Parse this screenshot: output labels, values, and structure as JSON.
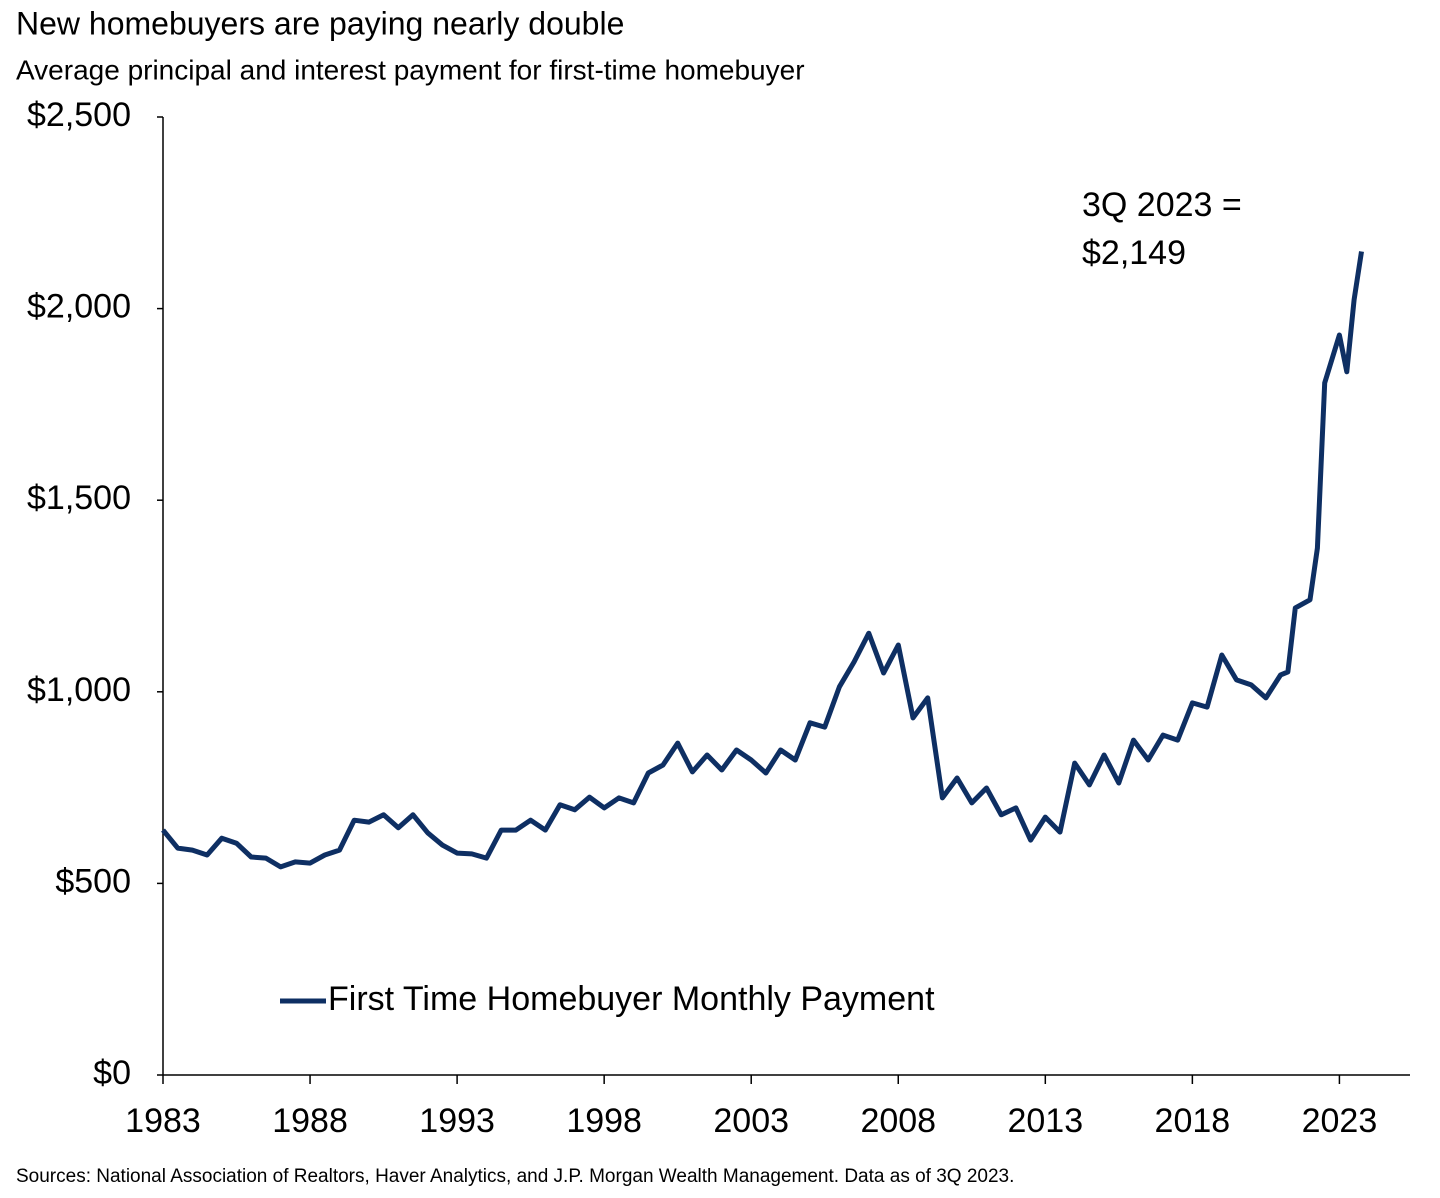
{
  "chart_data": {
    "type": "line",
    "title": "New homebuyers are paying nearly double",
    "subtitle": "Average principal and interest payment for first-time homebuyer",
    "annotation": [
      "3Q 2023 =",
      "$2,149"
    ],
    "source": "Sources: National Association of Realtors, Haver Analytics, and J.P. Morgan Wealth Management. Data as of 3Q 2023.",
    "x": [
      1983.0,
      1983.5,
      1984.0,
      1984.5,
      1985.0,
      1985.5,
      1986.0,
      1986.5,
      1987.0,
      1987.5,
      1988.0,
      1988.5,
      1989.0,
      1989.5,
      1990.0,
      1990.5,
      1991.0,
      1991.5,
      1992.0,
      1992.5,
      1993.0,
      1993.5,
      1994.0,
      1994.5,
      1995.0,
      1995.5,
      1996.0,
      1996.5,
      1997.0,
      1997.5,
      1998.0,
      1998.5,
      1999.0,
      1999.5,
      2000.0,
      2000.5,
      2001.0,
      2001.5,
      2002.0,
      2002.5,
      2003.0,
      2003.5,
      2004.0,
      2004.5,
      2005.0,
      2005.5,
      2006.0,
      2006.5,
      2007.0,
      2007.5,
      2008.0,
      2008.5,
      2009.0,
      2009.5,
      2010.0,
      2010.5,
      2011.0,
      2011.5,
      2012.0,
      2012.5,
      2013.0,
      2013.5,
      2014.0,
      2014.5,
      2015.0,
      2015.5,
      2016.0,
      2016.5,
      2017.0,
      2017.5,
      2018.0,
      2018.5,
      2019.0,
      2019.5,
      2020.0,
      2020.5,
      2021.0,
      2021.25,
      2021.5,
      2022.0,
      2022.25,
      2022.5,
      2023.0,
      2023.25,
      2023.5,
      2023.75
    ],
    "series": [
      {
        "name": "First Time Homebuyer Monthly Payment",
        "color": "#0e2f63",
        "values": [
          639,
          592,
          587,
          574,
          618,
          605,
          569,
          566,
          543,
          556,
          553,
          574,
          587,
          665,
          660,
          679,
          645,
          679,
          632,
          600,
          579,
          577,
          566,
          639,
          639,
          665,
          639,
          705,
          692,
          725,
          697,
          723,
          710,
          788,
          809,
          866,
          791,
          835,
          796,
          848,
          822,
          788,
          848,
          822,
          919,
          908,
          1013,
          1078,
          1153,
          1049,
          1122,
          932,
          984,
          723,
          775,
          710,
          749,
          679,
          697,
          613,
          673,
          634,
          814,
          757,
          835,
          762,
          874,
          822,
          887,
          874,
          971,
          960,
          1096,
          1031,
          1018,
          984,
          1044,
          1052,
          1219,
          1240,
          1375,
          1806,
          1931,
          1835,
          2023,
          2149
        ]
      }
    ],
    "xlim": [
      1983,
      2025.4
    ],
    "xticks": [
      1983,
      1988,
      1993,
      1998,
      2003,
      2008,
      2013,
      2018,
      2023
    ],
    "ylim": [
      0,
      2500
    ],
    "yticks": [
      {
        "value": 0,
        "label": "$0"
      },
      {
        "value": 500,
        "label": "$500"
      },
      {
        "value": 1000,
        "label": "$1,000"
      },
      {
        "value": 1500,
        "label": "$1,500"
      },
      {
        "value": 2000,
        "label": "$2,000"
      },
      {
        "value": 2500,
        "label": "$2,500"
      }
    ],
    "grid": false,
    "legend": "bottom"
  }
}
